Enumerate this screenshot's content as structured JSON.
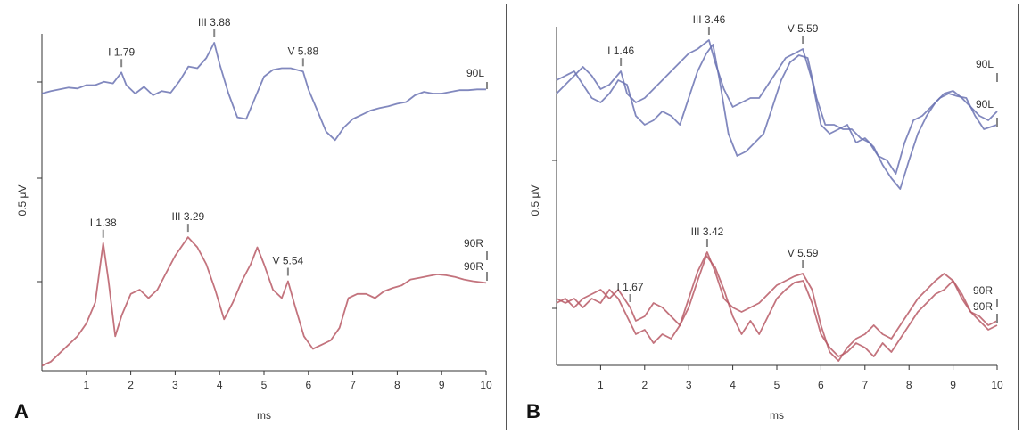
{
  "chart_data": [
    {
      "type": "line",
      "panel_label": "A",
      "xlabel": "ms",
      "ylabel": "0.5 μV",
      "xlim": [
        0,
        10
      ],
      "x_ticks": [
        "1",
        "2",
        "3",
        "4",
        "5",
        "6",
        "7",
        "8",
        "9",
        "10"
      ],
      "grid": false,
      "series": [
        {
          "name": "90L",
          "color": "#6b73b3",
          "x": [
            0,
            0.2,
            0.4,
            0.6,
            0.8,
            1.0,
            1.2,
            1.4,
            1.6,
            1.79,
            1.9,
            2.1,
            2.3,
            2.5,
            2.7,
            2.9,
            3.1,
            3.3,
            3.5,
            3.7,
            3.88,
            4.0,
            4.2,
            4.4,
            4.6,
            4.8,
            5.0,
            5.2,
            5.4,
            5.6,
            5.88,
            6.0,
            6.2,
            6.4,
            6.6,
            6.8,
            7.0,
            7.2,
            7.4,
            7.6,
            7.8,
            8.0,
            8.2,
            8.4,
            8.6,
            8.8,
            9.0,
            9.2,
            9.4,
            9.6,
            9.8,
            10.0
          ],
          "y": [
            0.0,
            0.03,
            0.05,
            0.07,
            0.06,
            0.1,
            0.1,
            0.14,
            0.12,
            0.25,
            0.1,
            0.0,
            0.08,
            -0.02,
            0.03,
            0.01,
            0.15,
            0.32,
            0.3,
            0.42,
            0.6,
            0.35,
            0.0,
            -0.28,
            -0.3,
            -0.05,
            0.2,
            0.28,
            0.3,
            0.3,
            0.26,
            0.05,
            -0.2,
            -0.45,
            -0.55,
            -0.4,
            -0.3,
            -0.25,
            -0.2,
            -0.17,
            -0.15,
            -0.12,
            -0.1,
            -0.02,
            0.02,
            0.0,
            0.0,
            0.02,
            0.04,
            0.04,
            0.05,
            0.05
          ]
        },
        {
          "name": "90R",
          "color": "#b85a66",
          "x": [
            0,
            0.2,
            0.4,
            0.6,
            0.8,
            1.0,
            1.2,
            1.38,
            1.5,
            1.65,
            1.8,
            2.0,
            2.2,
            2.4,
            2.6,
            2.8,
            3.0,
            3.29,
            3.5,
            3.7,
            3.9,
            4.1,
            4.3,
            4.5,
            4.7,
            4.85,
            5.0,
            5.2,
            5.4,
            5.54,
            5.7,
            5.9,
            6.1,
            6.3,
            6.5,
            6.7,
            6.9,
            7.1,
            7.3,
            7.5,
            7.7,
            7.9,
            8.1,
            8.3,
            8.5,
            8.7,
            8.9,
            9.1,
            9.3,
            9.5,
            9.7,
            10.0
          ],
          "y": [
            -0.9,
            -0.85,
            -0.75,
            -0.65,
            -0.55,
            -0.4,
            -0.15,
            0.55,
            0.1,
            -0.55,
            -0.3,
            -0.05,
            0.0,
            -0.1,
            0.0,
            0.2,
            0.4,
            0.62,
            0.5,
            0.3,
            0.0,
            -0.35,
            -0.15,
            0.1,
            0.3,
            0.5,
            0.3,
            0.0,
            -0.1,
            0.1,
            -0.2,
            -0.55,
            -0.7,
            -0.65,
            -0.6,
            -0.45,
            -0.1,
            -0.05,
            -0.05,
            -0.1,
            -0.02,
            0.02,
            0.05,
            0.12,
            0.14,
            0.16,
            0.18,
            0.17,
            0.15,
            0.12,
            0.1,
            0.08
          ]
        }
      ],
      "annotations": [
        {
          "text": "I 1.79",
          "x": 1.79,
          "series": "90L"
        },
        {
          "text": "III 3.88",
          "x": 3.88,
          "series": "90L"
        },
        {
          "text": "V 5.88",
          "x": 5.88,
          "series": "90L"
        },
        {
          "text": "I 1.38",
          "x": 1.38,
          "series": "90R"
        },
        {
          "text": "III 3.29",
          "x": 3.29,
          "series": "90R"
        },
        {
          "text": "V 5.54",
          "x": 5.54,
          "series": "90R"
        }
      ],
      "end_labels": [
        "90L",
        "90R",
        "90R"
      ]
    },
    {
      "type": "line",
      "panel_label": "B",
      "xlabel": "ms",
      "ylabel": "0.5 μV",
      "xlim": [
        0,
        10
      ],
      "x_ticks": [
        "1",
        "2",
        "3",
        "4",
        "5",
        "6",
        "7",
        "8",
        "9",
        "10"
      ],
      "grid": false,
      "series": [
        {
          "name": "90L",
          "color": "#6b73b3",
          "x": [
            0,
            0.2,
            0.4,
            0.6,
            0.8,
            1.0,
            1.2,
            1.46,
            1.6,
            1.8,
            2.0,
            2.2,
            2.4,
            2.6,
            2.8,
            3.0,
            3.2,
            3.46,
            3.6,
            3.8,
            4.0,
            4.2,
            4.4,
            4.6,
            4.8,
            5.0,
            5.2,
            5.4,
            5.59,
            5.8,
            6.0,
            6.2,
            6.4,
            6.6,
            6.8,
            7.0,
            7.2,
            7.4,
            7.6,
            7.8,
            8.0,
            8.2,
            8.4,
            8.6,
            8.8,
            9.0,
            9.2,
            9.4,
            9.6,
            9.8,
            10.0
          ],
          "y": [
            0.35,
            0.45,
            0.55,
            0.65,
            0.55,
            0.4,
            0.45,
            0.6,
            0.35,
            0.25,
            0.3,
            0.4,
            0.5,
            0.6,
            0.7,
            0.8,
            0.85,
            0.95,
            0.7,
            0.4,
            0.2,
            0.25,
            0.3,
            0.3,
            0.45,
            0.6,
            0.75,
            0.8,
            0.85,
            0.5,
            0.0,
            -0.1,
            -0.05,
            0.0,
            -0.2,
            -0.15,
            -0.25,
            -0.45,
            -0.6,
            -0.72,
            -0.4,
            -0.1,
            0.1,
            0.25,
            0.35,
            0.38,
            0.3,
            0.2,
            0.1,
            0.05,
            0.15
          ]
        },
        {
          "name": "90L",
          "color": "#6b73b3",
          "x": [
            0,
            0.2,
            0.4,
            0.6,
            0.8,
            1.0,
            1.2,
            1.4,
            1.6,
            1.8,
            2.0,
            2.2,
            2.4,
            2.6,
            2.8,
            3.0,
            3.2,
            3.4,
            3.55,
            3.7,
            3.9,
            4.1,
            4.3,
            4.5,
            4.7,
            4.9,
            5.1,
            5.3,
            5.5,
            5.7,
            5.9,
            6.1,
            6.3,
            6.5,
            6.7,
            6.9,
            7.1,
            7.3,
            7.5,
            7.7,
            7.9,
            8.1,
            8.3,
            8.5,
            8.7,
            8.9,
            9.1,
            9.3,
            9.5,
            9.7,
            10.0
          ],
          "y": [
            0.5,
            0.55,
            0.6,
            0.45,
            0.3,
            0.25,
            0.35,
            0.5,
            0.45,
            0.1,
            0.0,
            0.05,
            0.15,
            0.1,
            0.0,
            0.3,
            0.6,
            0.8,
            0.9,
            0.5,
            -0.1,
            -0.35,
            -0.3,
            -0.2,
            -0.1,
            0.2,
            0.5,
            0.7,
            0.78,
            0.75,
            0.3,
            0.0,
            0.0,
            -0.05,
            -0.05,
            -0.15,
            -0.2,
            -0.35,
            -0.4,
            -0.55,
            -0.2,
            0.05,
            0.1,
            0.2,
            0.3,
            0.35,
            0.32,
            0.3,
            0.1,
            -0.05,
            0.0
          ]
        },
        {
          "name": "90R",
          "color": "#b85a66",
          "x": [
            0,
            0.2,
            0.4,
            0.6,
            0.8,
            1.0,
            1.2,
            1.4,
            1.67,
            1.8,
            2.0,
            2.2,
            2.4,
            2.6,
            2.8,
            3.0,
            3.2,
            3.42,
            3.6,
            3.8,
            4.0,
            4.2,
            4.4,
            4.6,
            4.8,
            5.0,
            5.2,
            5.4,
            5.59,
            5.8,
            6.0,
            6.2,
            6.4,
            6.6,
            6.8,
            7.0,
            7.2,
            7.4,
            7.6,
            7.8,
            8.0,
            8.2,
            8.4,
            8.6,
            8.8,
            9.0,
            9.2,
            9.4,
            9.6,
            9.8,
            10.0
          ],
          "y": [
            0.05,
            0.1,
            0.0,
            0.1,
            0.15,
            0.2,
            0.1,
            0.2,
            0.0,
            -0.15,
            -0.1,
            0.05,
            0.0,
            -0.1,
            -0.2,
            0.1,
            0.4,
            0.62,
            0.4,
            0.1,
            0.0,
            -0.05,
            0.0,
            0.05,
            0.15,
            0.25,
            0.3,
            0.35,
            0.38,
            0.2,
            -0.2,
            -0.5,
            -0.6,
            -0.45,
            -0.35,
            -0.3,
            -0.2,
            -0.3,
            -0.35,
            -0.2,
            -0.05,
            0.1,
            0.2,
            0.3,
            0.38,
            0.3,
            0.1,
            -0.05,
            -0.15,
            -0.25,
            -0.2
          ]
        },
        {
          "name": "90R",
          "color": "#b85a66",
          "x": [
            0,
            0.2,
            0.4,
            0.6,
            0.8,
            1.0,
            1.2,
            1.4,
            1.6,
            1.8,
            2.0,
            2.2,
            2.4,
            2.6,
            2.8,
            3.0,
            3.2,
            3.4,
            3.6,
            3.8,
            4.0,
            4.2,
            4.4,
            4.6,
            4.8,
            5.0,
            5.2,
            5.4,
            5.6,
            5.8,
            6.0,
            6.2,
            6.4,
            6.6,
            6.8,
            7.0,
            7.2,
            7.4,
            7.6,
            7.8,
            8.0,
            8.2,
            8.4,
            8.6,
            8.8,
            9.0,
            9.2,
            9.4,
            9.6,
            9.8,
            10.0
          ],
          "y": [
            0.1,
            0.05,
            0.1,
            0.0,
            0.1,
            0.05,
            0.2,
            0.1,
            -0.1,
            -0.3,
            -0.25,
            -0.4,
            -0.3,
            -0.35,
            -0.2,
            0.0,
            0.3,
            0.58,
            0.45,
            0.2,
            -0.1,
            -0.3,
            -0.15,
            -0.3,
            -0.1,
            0.1,
            0.2,
            0.28,
            0.3,
            0.05,
            -0.3,
            -0.45,
            -0.55,
            -0.5,
            -0.4,
            -0.45,
            -0.55,
            -0.4,
            -0.5,
            -0.35,
            -0.2,
            -0.05,
            0.05,
            0.15,
            0.2,
            0.3,
            0.15,
            -0.05,
            -0.1,
            -0.2,
            -0.15
          ]
        }
      ],
      "annotations": [
        {
          "text": "I 1.46",
          "x": 1.46,
          "series": "90L"
        },
        {
          "text": "III 3.46",
          "x": 3.46,
          "series": "90L"
        },
        {
          "text": "V 5.59",
          "x": 5.59,
          "series": "90L"
        },
        {
          "text": "I 1.67",
          "x": 1.67,
          "series": "90R"
        },
        {
          "text": "III 3.42",
          "x": 3.42,
          "series": "90R"
        },
        {
          "text": "V 5.59",
          "x": 5.59,
          "series": "90R"
        }
      ],
      "end_labels": [
        "90L",
        "90L",
        "90R",
        "90R"
      ]
    }
  ]
}
